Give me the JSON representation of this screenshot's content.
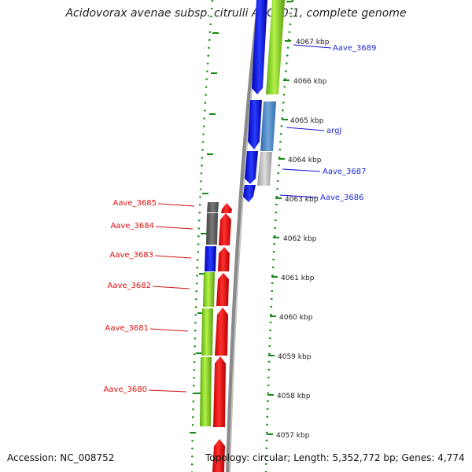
{
  "title": "Acidovorax avenae subsp. citrulli AAC00-1, complete genome",
  "footer": {
    "accession": "Accession: NC_008752",
    "summary": "Topology: circular; Length: 5,352,772 bp; Genes: 4,774"
  },
  "kbp_labels": [
    "4067 kbp",
    "4066 kbp",
    "4065 kbp",
    "4064 kbp",
    "4063 kbp",
    "4062 kbp",
    "4061 kbp",
    "4060 kbp",
    "4059 kbp",
    "4058 kbp",
    "4057 kbp"
  ],
  "genes_forward": [
    {
      "label": "Aave_3689",
      "color": "#1f2bd6"
    },
    {
      "label": "argJ",
      "color": "#1f2bd6"
    },
    {
      "label": "Aave_3687",
      "color": "#1f2bd6"
    },
    {
      "label": "Aave_3686",
      "color": "#1f2bd6"
    }
  ],
  "genes_reverse": [
    {
      "label": "Aave_3685",
      "color": "#e01010"
    },
    {
      "label": "Aave_3684",
      "color": "#e01010"
    },
    {
      "label": "Aave_3683",
      "color": "#e01010"
    },
    {
      "label": "Aave_3682",
      "color": "#e01010"
    },
    {
      "label": "Aave_3681",
      "color": "#e01010"
    },
    {
      "label": "Aave_3680",
      "color": "#e01010"
    }
  ],
  "colors": {
    "blue_gene": "#1010ee",
    "red_gene": "#ee1010",
    "green_gene": "#99e22a",
    "steelblue_gene": "#4a86c0",
    "gray_gene": "#6a6a6a",
    "lightgray_gene": "#bdbdbd",
    "tick_green": "#1a8a1a",
    "backbone": "#888888"
  }
}
